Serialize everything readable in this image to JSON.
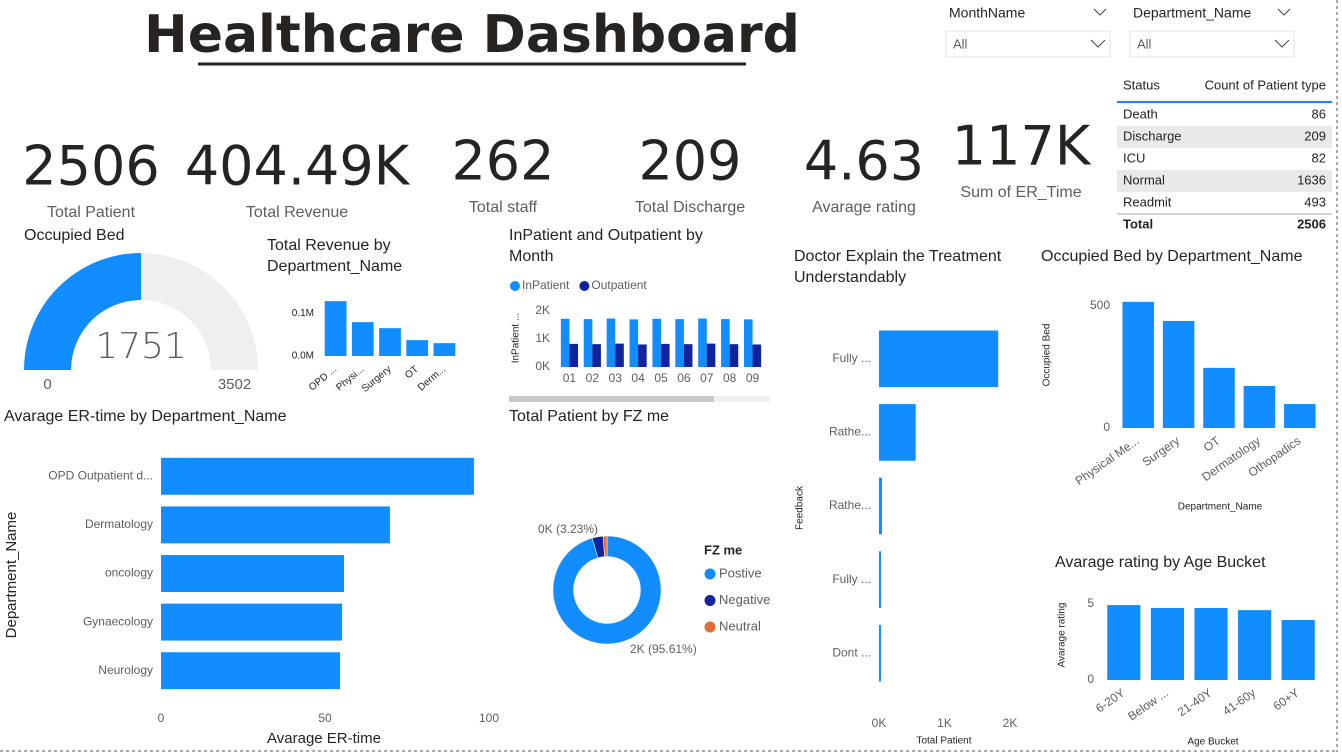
{
  "header": {
    "title": "Healthcare Dashboard"
  },
  "slicers": [
    {
      "label": "MonthName",
      "value": "All"
    },
    {
      "label": "Department_Name",
      "value": "All"
    }
  ],
  "kpis": [
    {
      "value": 2506,
      "label": "Total Patient"
    },
    {
      "value": "404.49K",
      "label": "Total Revenue"
    },
    {
      "value": 262,
      "label": "Total staff"
    },
    {
      "value": 209,
      "label": "Total Discharge"
    },
    {
      "value": 4.63,
      "label": "Avarage rating"
    },
    {
      "value": "117K",
      "label": "Sum of ER_Time"
    }
  ],
  "table": {
    "columns": [
      "Status",
      "Count of Patient type"
    ],
    "rows": [
      [
        "Death",
        86
      ],
      [
        "Discharge",
        209
      ],
      [
        "ICU",
        82
      ],
      [
        "Normal",
        1636
      ],
      [
        "Readmit",
        493
      ]
    ],
    "total": [
      "Total",
      2506
    ]
  },
  "chart_data": [
    {
      "type": "gauge",
      "title": "Occupied Bed",
      "value": 1751,
      "min": 0,
      "max": 3502,
      "color": "#118dff"
    },
    {
      "type": "bar",
      "title": "Total Revenue by Department_Name",
      "categories": [
        "OPD ...",
        "Physi...",
        "Surgery",
        "OT",
        "Derm..."
      ],
      "values": [
        128000,
        79000,
        65000,
        37000,
        30000
      ],
      "color": "#118dff",
      "ylim": [
        0,
        140000
      ],
      "yticks": [
        {
          "value": 0,
          "label": "0.0M"
        },
        {
          "value": 100000,
          "label": "0.1M"
        }
      ]
    },
    {
      "type": "bar",
      "title": "InPatient and Outpatient by Month",
      "categories": [
        "01",
        "02",
        "03",
        "04",
        "05",
        "06",
        "07",
        "08",
        "09"
      ],
      "series": [
        {
          "name": "InPatient",
          "color": "#118dff",
          "values": [
            1710,
            1700,
            1720,
            1690,
            1710,
            1700,
            1720,
            1700,
            1690
          ]
        },
        {
          "name": "Outpatient",
          "color": "#12239e",
          "values": [
            820,
            810,
            830,
            800,
            820,
            810,
            830,
            810,
            800
          ]
        }
      ],
      "ylabel": "InPatient ...",
      "ylim": [
        0,
        2200
      ],
      "yticks": [
        {
          "value": 0,
          "label": "0K"
        },
        {
          "value": 1000,
          "label": "1K"
        },
        {
          "value": 2000,
          "label": "2K"
        }
      ]
    },
    {
      "type": "pie",
      "title": "Total Patient by FZ me",
      "legend_title": "FZ me",
      "categories": [
        "Postive",
        "Negative",
        "Neutral"
      ],
      "values": [
        2396,
        81,
        29
      ],
      "value_labels": [
        "2K (95.61%)",
        "0K (3.23%)",
        null
      ],
      "colors": [
        "#118dff",
        "#12239e",
        "#e66c37"
      ],
      "hole": 0.62
    },
    {
      "type": "barh",
      "title": "Doctor Explain the Treatment Understandably",
      "categories": [
        "Fully ...",
        "Rathe...",
        "Rathe...",
        "Fully ...",
        "Dont ..."
      ],
      "values": [
        1820,
        560,
        45,
        30,
        30
      ],
      "color": "#118dff",
      "xlabel": "Total Patient",
      "ylabel": "Feedback",
      "xlim": [
        0,
        2000
      ],
      "xticks": [
        {
          "value": 0,
          "label": "0K"
        },
        {
          "value": 1000,
          "label": "1K"
        },
        {
          "value": 2000,
          "label": "2K"
        }
      ]
    },
    {
      "type": "bar",
      "title": "Occupied Bed by Department_Name",
      "categories": [
        "Physical Me...",
        "Surgery",
        "OT",
        "Dermatology",
        "Othopadics"
      ],
      "values": [
        516,
        438,
        246,
        172,
        98
      ],
      "color": "#118dff",
      "xlabel": "Department_Name",
      "ylabel": "Occupied Bed",
      "ylim": [
        0,
        540
      ],
      "yticks": [
        0,
        500
      ]
    },
    {
      "type": "barh",
      "title": "Avarage ER-time by Department_Name",
      "categories": [
        "OPD Outpatient d...",
        "Dermatology",
        "oncology",
        "Gynaecology",
        "Neurology"
      ],
      "values": [
        95.4,
        69.8,
        55.8,
        55.2,
        54.6
      ],
      "color": "#118dff",
      "xlabel": "Avarage ER-time",
      "ylabel": "Department_Name",
      "xlim": [
        0,
        100
      ],
      "xticks": [
        0,
        50,
        100
      ]
    },
    {
      "type": "bar",
      "title": "Avarage rating by Age Bucket",
      "categories": [
        "6-20Y",
        "Below ...",
        "21-40Y",
        "41-60y",
        "60+Y"
      ],
      "values": [
        4.93,
        4.74,
        4.74,
        4.6,
        3.95
      ],
      "color": "#118dff",
      "xlabel": "Age Bucket",
      "ylabel": "Avarage rating",
      "ylim": [
        0,
        5.2
      ],
      "yticks": [
        0,
        5
      ]
    }
  ]
}
